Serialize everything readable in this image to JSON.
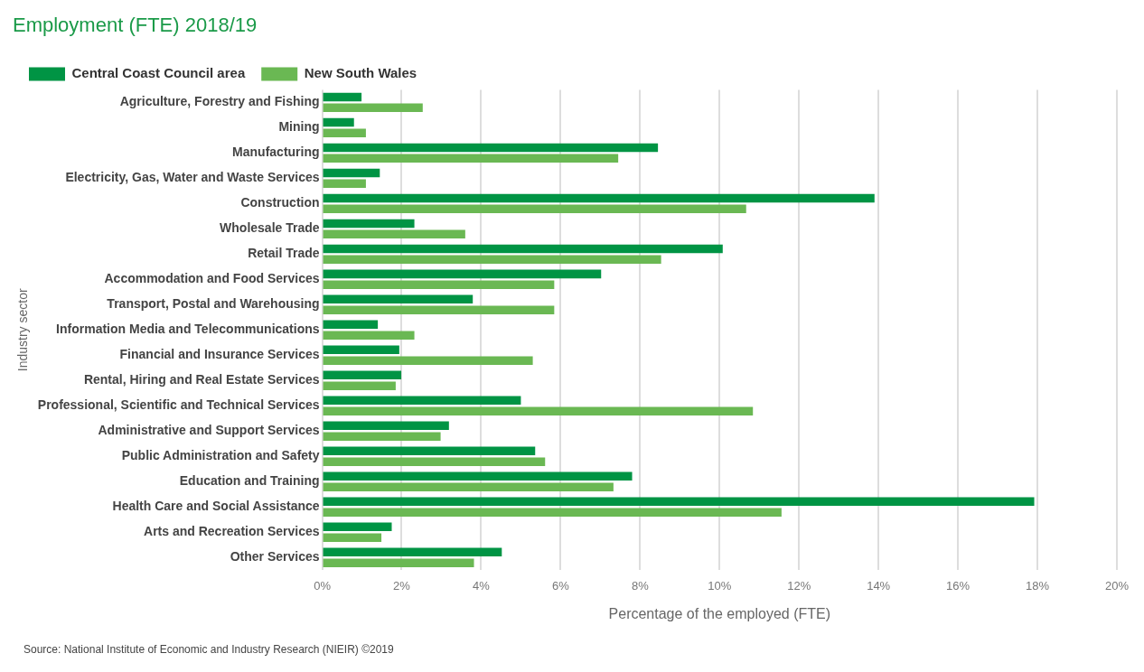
{
  "chart_data": {
    "type": "bar",
    "orientation": "horizontal",
    "title": "Employment (FTE) 2018/19",
    "xlabel": "Percentage of the employed (FTE)",
    "ylabel": "Industry sector",
    "categories": [
      "Agriculture, Forestry and Fishing",
      "Mining",
      "Manufacturing",
      "Electricity, Gas, Water and Waste Services",
      "Construction",
      "Wholesale Trade",
      "Retail Trade",
      "Accommodation and Food Services",
      "Transport, Postal and Warehousing",
      "Information Media and Telecommunications",
      "Financial and Insurance Services",
      "Rental, Hiring and Real Estate Services",
      "Professional, Scientific and Technical Services",
      "Administrative and Support Services",
      "Public Administration and Safety",
      "Education and Training",
      "Health Care and Social Assistance",
      "Arts and Recreation Services",
      "Other Services"
    ],
    "series": [
      {
        "name": "Central Coast Council area",
        "color": "#009444",
        "values": [
          0.99,
          0.8,
          8.45,
          1.45,
          13.9,
          2.32,
          10.08,
          7.02,
          3.79,
          1.4,
          1.94,
          1.99,
          5.0,
          3.19,
          5.36,
          7.8,
          17.92,
          1.75,
          4.52
        ]
      },
      {
        "name": "New South Wales",
        "color": "#6ab853",
        "values": [
          2.53,
          1.1,
          7.45,
          1.1,
          10.67,
          3.6,
          8.53,
          5.84,
          5.84,
          2.32,
          5.3,
          1.85,
          10.84,
          2.98,
          5.61,
          7.33,
          11.56,
          1.49,
          3.82
        ]
      }
    ],
    "xlim": [
      0,
      20
    ],
    "xticks": [
      {
        "value": 0,
        "label": "0%"
      },
      {
        "value": 2,
        "label": "2%"
      },
      {
        "value": 4,
        "label": "4%"
      },
      {
        "value": 6,
        "label": "6%"
      },
      {
        "value": 8,
        "label": "8%"
      },
      {
        "value": 10,
        "label": "10%"
      },
      {
        "value": 12,
        "label": "12%"
      },
      {
        "value": 14,
        "label": "14%"
      },
      {
        "value": 16,
        "label": "16%"
      },
      {
        "value": 18,
        "label": "18%"
      },
      {
        "value": 20,
        "label": "20%"
      }
    ],
    "grid": "x",
    "legend": "top left",
    "annotations": [
      "Source: National Institute of Economic and Industry Research (NIEIR) ©2019"
    ]
  }
}
